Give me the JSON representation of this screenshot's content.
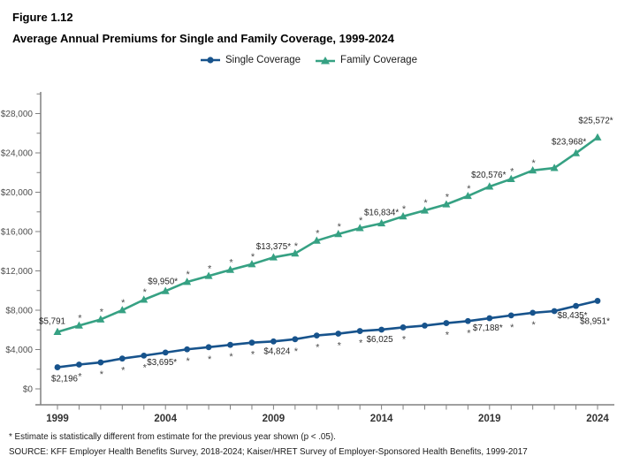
{
  "header": {
    "figure_number": "Figure 1.12",
    "title": "Average Annual Premiums for Single and Family Coverage, 1999-2024"
  },
  "footnotes": {
    "significance": "* Estimate is statistically different from estimate for the previous year shown (p < .05).",
    "source": "SOURCE: KFF Employer Health Benefits Survey, 2018-2024; Kaiser/HRET Survey of Employer-Sponsored Health Benefits, 1999-2017"
  },
  "colors": {
    "single_line": "#17538C",
    "family_line": "#36A183",
    "axis": "#808080",
    "asterisk": "#4d4d4d"
  },
  "chart_data": {
    "type": "line",
    "title": "Average Annual Premiums for Single and Family Coverage, 1999-2024",
    "xlabel": "",
    "ylabel": "",
    "ylim": [
      0,
      30000
    ],
    "grid": false,
    "legend_position": "top",
    "x": [
      1999,
      2000,
      2001,
      2002,
      2003,
      2004,
      2005,
      2006,
      2007,
      2008,
      2009,
      2010,
      2011,
      2012,
      2013,
      2014,
      2015,
      2016,
      2017,
      2018,
      2019,
      2020,
      2021,
      2022,
      2023,
      2024
    ],
    "x_tick_labels": [
      "1999",
      "2004",
      "2009",
      "2014",
      "2019",
      "2024"
    ],
    "y_tick_labels": [
      "$0",
      "$4,000",
      "$8,000",
      "$12,000",
      "$16,000",
      "$20,000",
      "$24,000",
      "$28,000"
    ],
    "y_major_interval": 4000,
    "y_minor_interval": 2000,
    "series": [
      {
        "name": "Single Coverage",
        "color": "#17538C",
        "marker": "circle",
        "values": [
          2196,
          2471,
          2689,
          3083,
          3383,
          3695,
          4024,
          4242,
          4479,
          4704,
          4824,
          5049,
          5429,
          5615,
          5884,
          6025,
          6251,
          6435,
          6690,
          6896,
          7188,
          7470,
          7739,
          7911,
          8435,
          8951
        ],
        "significant_years": [
          2000,
          2001,
          2002,
          2003,
          2005,
          2006,
          2007,
          2008,
          2010,
          2011,
          2012,
          2013,
          2015,
          2017,
          2018,
          2020,
          2021
        ],
        "asterisk_side": "below",
        "labels": [
          {
            "year": 1999,
            "text": "$2,196",
            "dx": 8,
            "dy": 16,
            "anchor": "middle"
          },
          {
            "year": 2004,
            "text": "$3,695*",
            "dx": -4,
            "dy": 14,
            "anchor": "middle"
          },
          {
            "year": 2009,
            "text": "$4,824",
            "dx": 4,
            "dy": 14,
            "anchor": "middle"
          },
          {
            "year": 2014,
            "text": "$6,025",
            "dx": -2,
            "dy": 14,
            "anchor": "middle"
          },
          {
            "year": 2019,
            "text": "$7,188*",
            "dx": -2,
            "dy": 14,
            "anchor": "middle"
          },
          {
            "year": 2023,
            "text": "$8,435*",
            "dx": -4,
            "dy": 14,
            "anchor": "middle"
          },
          {
            "year": 2024,
            "text": "$8,951*",
            "dx": -3,
            "dy": 26,
            "anchor": "middle"
          }
        ]
      },
      {
        "name": "Family Coverage",
        "color": "#36A183",
        "marker": "triangle",
        "values": [
          5791,
          6438,
          7061,
          8003,
          9068,
          9950,
          10880,
          11480,
          12106,
          12680,
          13375,
          13770,
          15073,
          15745,
          16351,
          16834,
          17545,
          18142,
          18764,
          19616,
          20576,
          21342,
          22221,
          22463,
          23968,
          25572
        ],
        "significant_years": [
          2000,
          2001,
          2002,
          2003,
          2005,
          2006,
          2007,
          2008,
          2010,
          2011,
          2012,
          2013,
          2015,
          2016,
          2017,
          2018,
          2020,
          2021
        ],
        "asterisk_side": "above",
        "labels": [
          {
            "year": 1999,
            "text": "$5,791",
            "dx": -6,
            "dy": -9,
            "anchor": "middle"
          },
          {
            "year": 2004,
            "text": "$9,950*",
            "dx": -3,
            "dy": -8,
            "anchor": "middle"
          },
          {
            "year": 2009,
            "text": "$13,375*",
            "dx": 0,
            "dy": -9,
            "anchor": "middle"
          },
          {
            "year": 2014,
            "text": "$16,834*",
            "dx": 0,
            "dy": -9,
            "anchor": "middle"
          },
          {
            "year": 2019,
            "text": "$20,576*",
            "dx": -1,
            "dy": -10,
            "anchor": "middle"
          },
          {
            "year": 2023,
            "text": "$23,968*",
            "dx": -8,
            "dy": -10,
            "anchor": "middle"
          },
          {
            "year": 2024,
            "text": "$25,572*",
            "dx": -2,
            "dy": -16,
            "anchor": "middle"
          }
        ]
      }
    ]
  }
}
